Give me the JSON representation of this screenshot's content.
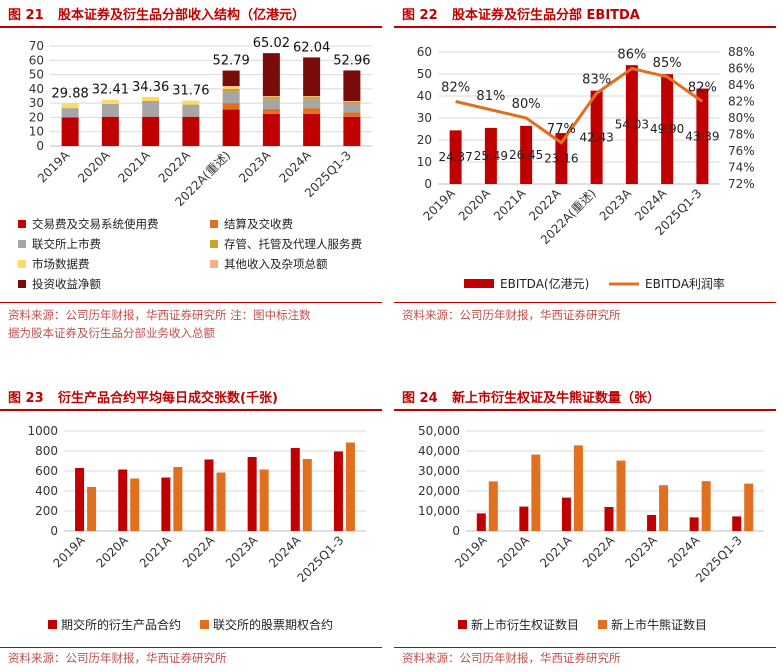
{
  "panels": {
    "p21": {
      "fig_label": "图 21",
      "title": "股本证券及衍生品分部收入结构（亿港元）",
      "source_line1": "资料来源：公司历年财报，华西证券研究所    注：图中标注数",
      "source_line2": "据为股本证券及衍生品分部业务收入总额"
    },
    "p22": {
      "fig_label": "图 22",
      "title": "股本证券及衍生品分部 EBITDA",
      "source": "资料来源：公司历年财报，华西证券研究所"
    },
    "p23": {
      "fig_label": "图 23",
      "title": "衍生产品合约平均每日成交张数(千张)",
      "source": "资料来源：公司历年财报，华西证券研究所"
    },
    "p24": {
      "fig_label": "图 24",
      "title": "新上市衍生权证及牛熊证数量（张）",
      "source": "资料来源：公司历年财报，华西证券研究所"
    }
  },
  "chart_data": [
    {
      "id": "fig21",
      "type": "bar",
      "stacked": true,
      "categories": [
        "2019A",
        "2020A",
        "2021A",
        "2022A",
        "2022A(重述)",
        "2023A",
        "2024A",
        "2025Q1-3"
      ],
      "ylim": [
        0,
        70
      ],
      "yticks": [
        0,
        10,
        20,
        30,
        40,
        50,
        60,
        70
      ],
      "totals": [
        29.88,
        32.41,
        34.36,
        31.76,
        52.79,
        65.02,
        62.04,
        52.96
      ],
      "series": [
        {
          "name": "交易费及交易系统使用费",
          "color": "#c00000",
          "values": [
            20.0,
            20.5,
            20.5,
            20.5,
            25.5,
            22.5,
            22.5,
            20.5
          ]
        },
        {
          "name": "结算及交收费",
          "color": "#e0701e",
          "values": [
            0,
            0,
            0,
            0,
            4.5,
            3.5,
            4.0,
            3.0
          ]
        },
        {
          "name": "联交所上市费",
          "color": "#a6a6a6",
          "values": [
            6.5,
            9.0,
            11.0,
            8.5,
            8.5,
            7.0,
            6.5,
            6.0
          ]
        },
        {
          "name": "存管、托管及代理人服务费",
          "color": "#c9a227",
          "values": [
            0,
            0,
            0,
            0,
            1.5,
            1.5,
            1.5,
            1.5
          ]
        },
        {
          "name": "市场数据费",
          "color": "#ffd966",
          "values": [
            3.4,
            2.9,
            2.9,
            2.8,
            1.5,
            0,
            0,
            0
          ]
        },
        {
          "name": "其他收入及杂项总额",
          "color": "#f4b183",
          "values": [
            0,
            0,
            0,
            0,
            0.5,
            0.5,
            0.5,
            0.5
          ]
        },
        {
          "name": "投资收益净额",
          "color": "#7a0c0c",
          "values": [
            0,
            0,
            0,
            0,
            10.8,
            30.0,
            27.0,
            21.4
          ]
        }
      ]
    },
    {
      "id": "fig22",
      "type": "bar",
      "categories": [
        "2019A",
        "2020A",
        "2021A",
        "2022A",
        "2022A(重述)",
        "2023A",
        "2024A",
        "2025Q1-3"
      ],
      "ylim": [
        0,
        60
      ],
      "yticks": [
        0,
        10,
        20,
        30,
        40,
        50,
        60
      ],
      "y2lim": [
        72,
        88
      ],
      "y2ticks": [
        "72%",
        "74%",
        "76%",
        "78%",
        "80%",
        "82%",
        "84%",
        "86%",
        "88%"
      ],
      "series": [
        {
          "name": "EBITDA(亿港元)",
          "kind": "bar",
          "color": "#c00000",
          "values": [
            24.37,
            25.49,
            26.45,
            23.16,
            42.43,
            54.03,
            49.9,
            43.39
          ],
          "labels": [
            "24.37",
            "25.49",
            "26.45",
            "23.16",
            "42.43",
            "54.03",
            "49.90",
            "43.39"
          ]
        },
        {
          "name": "EBITDA利润率",
          "kind": "line",
          "axis": "right",
          "color": "#e0701e",
          "values": [
            82,
            81,
            80,
            77,
            83,
            86,
            85,
            82
          ],
          "labels": [
            "82%",
            "81%",
            "80%",
            "77%",
            "83%",
            "86%",
            "85%",
            "82%"
          ]
        }
      ]
    },
    {
      "id": "fig23",
      "type": "bar",
      "categories": [
        "2019A",
        "2020A",
        "2021A",
        "2022A",
        "2023A",
        "2024A",
        "2025Q1-3"
      ],
      "ylim": [
        0,
        1000
      ],
      "yticks": [
        0,
        200,
        400,
        600,
        800,
        1000
      ],
      "series": [
        {
          "name": "期交所的衍生产品合约",
          "color": "#c00000",
          "values": [
            630,
            615,
            535,
            715,
            740,
            830,
            795
          ]
        },
        {
          "name": "联交所的股票期权合约",
          "color": "#e0701e",
          "values": [
            440,
            525,
            640,
            585,
            615,
            720,
            885
          ]
        }
      ]
    },
    {
      "id": "fig24",
      "type": "bar",
      "categories": [
        "2019A",
        "2020A",
        "2021A",
        "2022A",
        "2023A",
        "2024A",
        "2025Q1-3"
      ],
      "ylim": [
        0,
        50000
      ],
      "yticks": [
        "0",
        "10,000",
        "20,000",
        "30,000",
        "40,000",
        "50,000"
      ],
      "series": [
        {
          "name": "新上市衍生权证数目",
          "color": "#c00000",
          "values": [
            8800,
            12200,
            16700,
            12000,
            8000,
            6800,
            7300
          ]
        },
        {
          "name": "新上市牛熊证数目",
          "color": "#e0701e",
          "values": [
            24800,
            38200,
            42800,
            35200,
            22900,
            24900,
            23700
          ]
        }
      ]
    }
  ]
}
